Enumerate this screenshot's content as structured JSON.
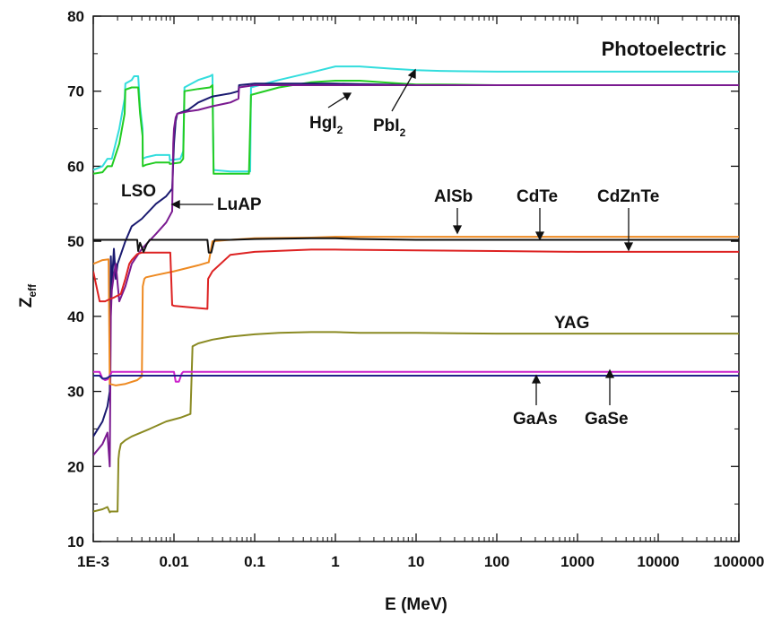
{
  "chart_data": {
    "type": "line",
    "title": "Photoelectric",
    "xlabel": "E (MeV)",
    "ylabel_main": "Z",
    "ylabel_sub": "eff",
    "xscale": "log",
    "xlim": [
      0.001,
      100000
    ],
    "ylim": [
      10,
      80
    ],
    "xticks": [
      {
        "value": 0.001,
        "label": "1E-3"
      },
      {
        "value": 0.01,
        "label": "0.01"
      },
      {
        "value": 0.1,
        "label": "0.1"
      },
      {
        "value": 1,
        "label": "1"
      },
      {
        "value": 10,
        "label": "10"
      },
      {
        "value": 100,
        "label": "100"
      },
      {
        "value": 1000,
        "label": "1000"
      },
      {
        "value": 10000,
        "label": "10000"
      },
      {
        "value": 100000,
        "label": "100000"
      }
    ],
    "yticks": [
      {
        "value": 10,
        "label": "10"
      },
      {
        "value": 20,
        "label": "20"
      },
      {
        "value": 30,
        "label": "30"
      },
      {
        "value": 40,
        "label": "40"
      },
      {
        "value": 50,
        "label": "50"
      },
      {
        "value": 60,
        "label": "60"
      },
      {
        "value": 70,
        "label": "70"
      },
      {
        "value": 80,
        "label": "80"
      }
    ],
    "series": [
      {
        "name": "PbI2",
        "color": "#33dddd",
        "x": [
          0.001,
          0.0013,
          0.0015,
          0.0017,
          0.0021,
          0.00245,
          0.0025,
          0.003,
          0.0032,
          0.0036,
          0.0038,
          0.00408,
          0.0041,
          0.0045,
          0.006,
          0.008,
          0.0088,
          0.0089,
          0.012,
          0.013,
          0.0135,
          0.02,
          0.028,
          0.03,
          0.031,
          0.05,
          0.08,
          0.088,
          0.09,
          0.2,
          0.5,
          1,
          2,
          5,
          10,
          20,
          100,
          1000,
          10000,
          100000
        ],
        "y": [
          59.5,
          60,
          61,
          61,
          65,
          69,
          71,
          71.5,
          72,
          72,
          68,
          65,
          61,
          61.2,
          61.5,
          61.5,
          61.5,
          60.8,
          61,
          62,
          70.5,
          71.5,
          72,
          72.2,
          59.5,
          59.3,
          59.3,
          59.3,
          70.5,
          71.5,
          72.5,
          73.3,
          73.3,
          73.0,
          72.8,
          72.7,
          72.6,
          72.6,
          72.6,
          72.6
        ]
      },
      {
        "name": "HgI2",
        "color": "#22cc22",
        "x": [
          0.001,
          0.0013,
          0.0015,
          0.0017,
          0.0021,
          0.00245,
          0.0025,
          0.003,
          0.0032,
          0.0036,
          0.0038,
          0.00408,
          0.0041,
          0.0045,
          0.006,
          0.008,
          0.0088,
          0.0089,
          0.012,
          0.013,
          0.0135,
          0.02,
          0.028,
          0.03,
          0.031,
          0.05,
          0.08,
          0.085,
          0.09,
          0.2,
          0.5,
          1,
          2,
          5,
          10,
          20,
          100,
          1000,
          10000,
          100000
        ],
        "y": [
          59,
          59.2,
          60,
          60,
          63,
          67,
          70.2,
          70.5,
          70.5,
          70.5,
          67,
          64,
          60,
          60.2,
          60.5,
          60.5,
          60.5,
          60.3,
          60.5,
          61,
          70,
          70.3,
          70.5,
          70.8,
          59,
          59,
          59,
          59,
          69.5,
          70.5,
          71.2,
          71.4,
          71.4,
          71.1,
          70.9,
          70.9,
          70.8,
          70.8,
          70.8,
          70.8
        ]
      },
      {
        "name": "LSO",
        "color": "#1a1a70",
        "x": [
          0.001,
          0.0013,
          0.0015,
          0.0016,
          0.00165,
          0.0017,
          0.0018,
          0.0019,
          0.002,
          0.0025,
          0.003,
          0.004,
          0.006,
          0.008,
          0.0095,
          0.01,
          0.0105,
          0.011,
          0.015,
          0.02,
          0.03,
          0.05,
          0.063,
          0.064,
          0.1,
          0.2,
          0.5,
          1,
          10,
          100,
          1000,
          10000,
          100000
        ],
        "y": [
          24,
          26,
          28,
          30,
          48,
          44,
          49,
          45,
          47,
          50,
          52,
          53,
          55,
          56,
          57,
          63,
          66,
          67,
          67.5,
          68.5,
          69.3,
          69.7,
          70,
          70.8,
          71,
          71,
          71,
          71,
          70.8,
          70.8,
          70.8,
          70.8,
          70.8
        ]
      },
      {
        "name": "LuAP",
        "color": "#7a1a90",
        "x": [
          0.001,
          0.0013,
          0.0015,
          0.0016,
          0.00165,
          0.0017,
          0.0018,
          0.0019,
          0.0021,
          0.0025,
          0.003,
          0.004,
          0.006,
          0.008,
          0.0095,
          0.0098,
          0.01,
          0.0105,
          0.011,
          0.015,
          0.02,
          0.03,
          0.05,
          0.063,
          0.064,
          0.1,
          0.2,
          0.5,
          1,
          10,
          100,
          1000,
          10000,
          100000
        ],
        "y": [
          21.5,
          23,
          24.5,
          20,
          40,
          43.5,
          45.5,
          47,
          42,
          44,
          47,
          49,
          51,
          52.5,
          54,
          63,
          65,
          66.5,
          67,
          67.3,
          67.5,
          68,
          68.5,
          69,
          70.5,
          70.8,
          70.8,
          70.8,
          70.8,
          70.8,
          70.8,
          70.8,
          70.8,
          70.8
        ]
      },
      {
        "name": "CdTe",
        "color": "#ee8a22",
        "x": [
          0.001,
          0.0013,
          0.00155,
          0.0016,
          0.0019,
          0.0025,
          0.0035,
          0.004,
          0.0041,
          0.0043,
          0.0045,
          0.006,
          0.01,
          0.02,
          0.0267,
          0.027,
          0.03,
          0.05,
          0.1,
          0.5,
          1,
          10,
          100,
          1000,
          10000,
          100000
        ],
        "y": [
          47,
          47.5,
          47.6,
          31,
          30.8,
          31,
          31.5,
          32,
          44,
          45,
          45.2,
          45.5,
          46,
          46.8,
          47.2,
          47.2,
          50,
          50.2,
          50.4,
          50.5,
          50.6,
          50.6,
          50.6,
          50.6,
          50.6,
          50.6
        ]
      },
      {
        "name": "CdZnTe",
        "color": "#dd2222",
        "x": [
          0.001,
          0.0012,
          0.0014,
          0.0016,
          0.0018,
          0.0022,
          0.0025,
          0.0028,
          0.003,
          0.0035,
          0.004,
          0.0043,
          0.005,
          0.009,
          0.0095,
          0.01,
          0.02,
          0.026,
          0.0265,
          0.03,
          0.05,
          0.1,
          0.5,
          1,
          10,
          100,
          1000,
          10000,
          100000
        ],
        "y": [
          46,
          42,
          42,
          42.3,
          42.5,
          43,
          45,
          47,
          47.5,
          48.3,
          48.5,
          48.5,
          48.5,
          48.5,
          41.5,
          41.4,
          41.1,
          41,
          45,
          46,
          48.2,
          48.6,
          48.9,
          48.9,
          48.8,
          48.7,
          48.6,
          48.6,
          48.6
        ]
      },
      {
        "name": "AlSb",
        "color": "#111111",
        "x": [
          0.001,
          0.002,
          0.0035,
          0.0036,
          0.0038,
          0.0042,
          0.0046,
          0.005,
          0.01,
          0.026,
          0.027,
          0.029,
          0.031,
          0.032,
          0.05,
          0.1,
          0.5,
          1,
          2,
          10,
          100,
          1000,
          10000,
          100000
        ],
        "y": [
          50.2,
          50.2,
          50.2,
          48.7,
          49.8,
          48.6,
          49.6,
          50.2,
          50.2,
          50.2,
          48.5,
          48.5,
          49.8,
          50.2,
          50.2,
          50.3,
          50.4,
          50.4,
          50.3,
          50.2,
          50.2,
          50.2,
          50.2,
          50.2
        ]
      },
      {
        "name": "YAG",
        "color": "#8a8a22",
        "x": [
          0.001,
          0.0013,
          0.0015,
          0.0016,
          0.00165,
          0.002,
          0.00205,
          0.0021,
          0.0022,
          0.0025,
          0.003,
          0.005,
          0.008,
          0.012,
          0.016,
          0.017,
          0.02,
          0.03,
          0.05,
          0.1,
          0.2,
          0.5,
          1,
          2,
          10,
          100,
          1000,
          10000,
          100000
        ],
        "y": [
          14,
          14.3,
          14.6,
          13.9,
          14,
          14,
          21,
          22,
          23,
          23.5,
          24,
          25,
          26,
          26.5,
          27,
          36,
          36.4,
          36.9,
          37.3,
          37.6,
          37.8,
          37.9,
          37.9,
          37.8,
          37.8,
          37.7,
          37.7,
          37.7,
          37.7
        ]
      },
      {
        "name": "GaSe",
        "color": "#cc22cc",
        "x": [
          0.001,
          0.0012,
          0.0013,
          0.0014,
          0.0015,
          0.0016,
          0.0017,
          0.0018,
          0.005,
          0.01,
          0.0105,
          0.0115,
          0.0125,
          0.013,
          0.1,
          1,
          10,
          100,
          1000,
          10000,
          100000
        ],
        "y": [
          32.6,
          32.6,
          31.7,
          31.5,
          31.6,
          32.1,
          32.6,
          32.6,
          32.6,
          32.6,
          31.3,
          31.3,
          32.4,
          32.6,
          32.6,
          32.6,
          32.6,
          32.6,
          32.6,
          32.6,
          32.6
        ]
      },
      {
        "name": "GaAs",
        "color": "#222288",
        "x": [
          0.001,
          0.0012,
          0.0013,
          0.0014,
          0.0015,
          0.0016,
          0.0017,
          0.0018,
          0.01,
          0.1,
          1,
          10,
          100,
          1000,
          10000,
          100000
        ],
        "y": [
          32.1,
          32.1,
          31.7,
          31.7,
          31.8,
          32.0,
          32.1,
          32.1,
          32.1,
          32.1,
          32.1,
          32.1,
          32.1,
          32.1,
          32.1,
          32.1
        ]
      }
    ],
    "annotations": [
      {
        "id": "lso",
        "text": "LSO"
      },
      {
        "id": "luap",
        "text": "LuAP"
      },
      {
        "id": "hgi2",
        "text": "HgI",
        "sub": "2"
      },
      {
        "id": "pbi2",
        "text": "PbI",
        "sub": "2"
      },
      {
        "id": "alsb",
        "text": "AlSb"
      },
      {
        "id": "cdte",
        "text": "CdTe"
      },
      {
        "id": "cdznte",
        "text": "CdZnTe"
      },
      {
        "id": "yag",
        "text": "YAG"
      },
      {
        "id": "gaas",
        "text": "GaAs"
      },
      {
        "id": "gase",
        "text": "GaSe"
      }
    ]
  }
}
